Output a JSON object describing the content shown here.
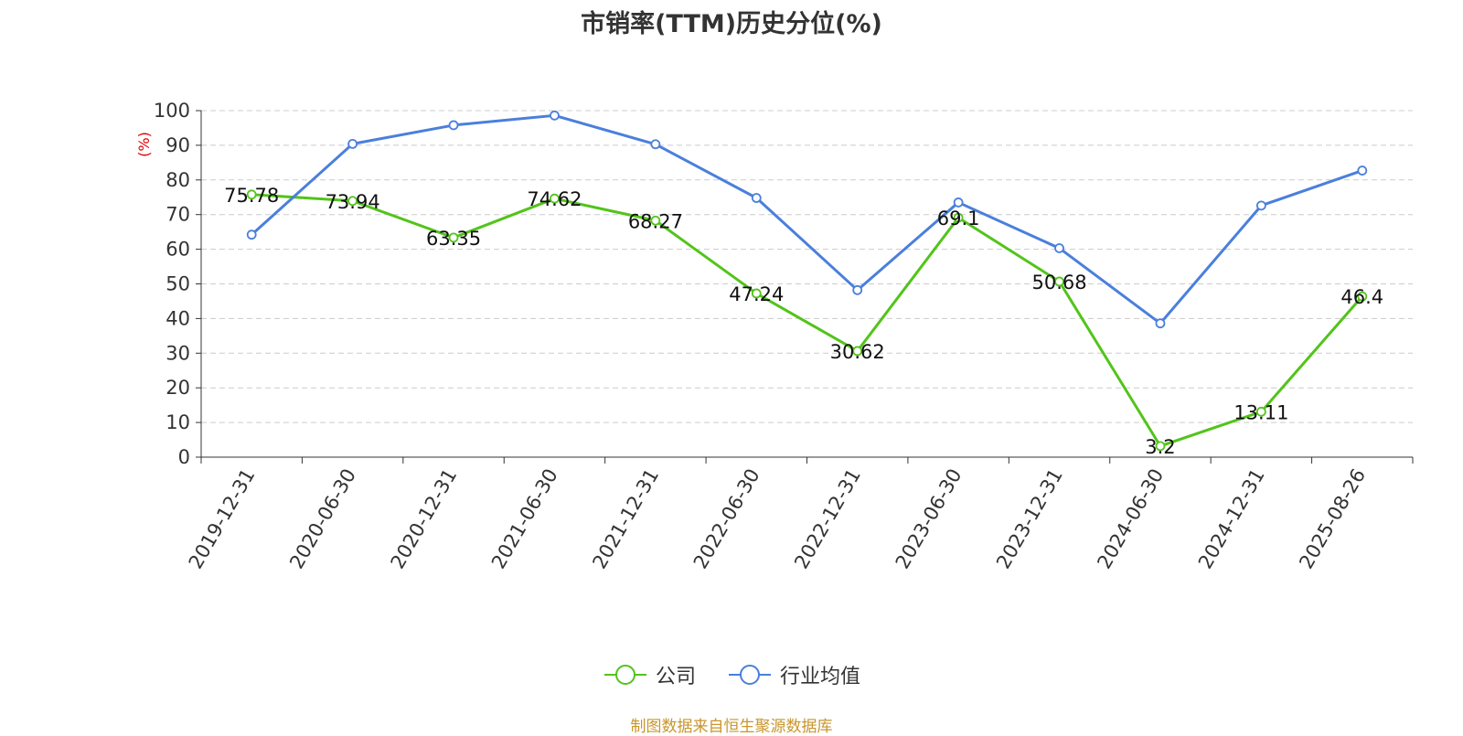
{
  "chart_data": {
    "type": "line",
    "title": "市销率(TTM)历史分位(%)",
    "ylabel": "(%)",
    "ylim": [
      0,
      100
    ],
    "y_ticks": [
      0,
      10,
      20,
      30,
      40,
      50,
      60,
      70,
      80,
      90,
      100
    ],
    "grid": true,
    "legend_position": "bottom",
    "categories": [
      "2019-12-31",
      "2020-06-30",
      "2020-12-31",
      "2021-06-30",
      "2021-12-31",
      "2022-06-30",
      "2022-12-31",
      "2023-06-30",
      "2023-12-31",
      "2024-06-30",
      "2024-12-31",
      "2025-08-26"
    ],
    "series": [
      {
        "name": "公司",
        "color": "#52c41a",
        "values": [
          75.78,
          73.94,
          63.35,
          74.62,
          68.27,
          47.24,
          30.62,
          69.1,
          50.68,
          3.2,
          13.11,
          46.4
        ],
        "labels": [
          "75.78",
          "73.94",
          "63.35",
          "74.62",
          "68.27",
          "47.24",
          "30.62",
          "69.1",
          "50.68",
          "3.2",
          "13.11",
          "46.4"
        ]
      },
      {
        "name": "行业均值",
        "color": "#4a7fdc",
        "values": [
          64.2,
          90.4,
          95.8,
          98.6,
          90.3,
          74.8,
          48.2,
          73.5,
          60.3,
          38.6,
          72.6,
          82.7
        ]
      }
    ]
  },
  "footer": {
    "source": "制图数据来自恒生聚源数据库"
  }
}
